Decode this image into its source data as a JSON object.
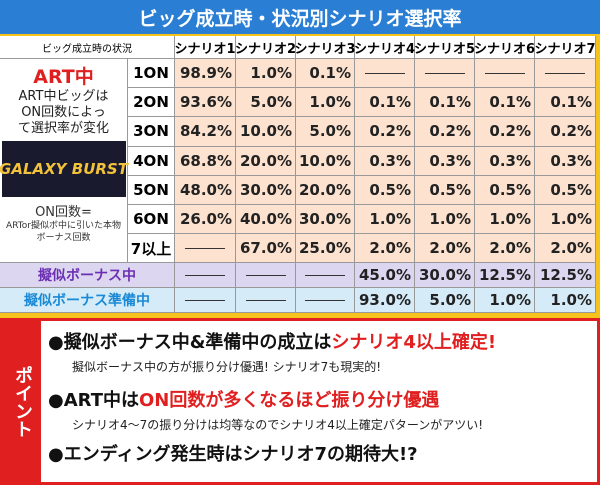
{
  "header": {
    "title": "ビッグ成立時・状況別シナリオ選択率"
  },
  "table": {
    "corner": "ビッグ成立時の状況",
    "columns": [
      "シナリオ1",
      "シナリオ2",
      "シナリオ3",
      "シナリオ4",
      "シナリオ5",
      "シナリオ6",
      "シナリオ7"
    ],
    "art_group": {
      "label": "ART中",
      "note": "ART中ビッグはON回数によって選択率が変化",
      "logo": "GALAXY BURST",
      "on_label": "ON回数=",
      "on_note": "ARTor擬似ボ中に引いた本物ボーナス回数"
    },
    "art_rows": [
      {
        "label": "1ON",
        "cells": [
          "98.9%",
          "1.0%",
          "0.1%",
          null,
          null,
          null,
          null
        ]
      },
      {
        "label": "2ON",
        "cells": [
          "93.6%",
          "5.0%",
          "1.0%",
          "0.1%",
          "0.1%",
          "0.1%",
          "0.1%"
        ]
      },
      {
        "label": "3ON",
        "cells": [
          "84.2%",
          "10.0%",
          "5.0%",
          "0.2%",
          "0.2%",
          "0.2%",
          "0.2%"
        ]
      },
      {
        "label": "4ON",
        "cells": [
          "68.8%",
          "20.0%",
          "10.0%",
          "0.3%",
          "0.3%",
          "0.3%",
          "0.3%"
        ]
      },
      {
        "label": "5ON",
        "cells": [
          "48.0%",
          "30.0%",
          "20.0%",
          "0.5%",
          "0.5%",
          "0.5%",
          "0.5%"
        ]
      },
      {
        "label": "6ON",
        "cells": [
          "26.0%",
          "40.0%",
          "30.0%",
          "1.0%",
          "1.0%",
          "1.0%",
          "1.0%"
        ]
      },
      {
        "label": "7以上",
        "cells": [
          null,
          "67.0%",
          "25.0%",
          "2.0%",
          "2.0%",
          "2.0%",
          "2.0%"
        ]
      }
    ],
    "other_rows": [
      {
        "label": "擬似ボーナス中",
        "cells": [
          null,
          null,
          null,
          "45.0%",
          "30.0%",
          "12.5%",
          "12.5%"
        ]
      },
      {
        "label": "擬似ボーナス準備中",
        "cells": [
          null,
          null,
          null,
          "93.0%",
          "5.0%",
          "1.0%",
          "1.0%"
        ]
      }
    ]
  },
  "points": {
    "label": "ポイント",
    "items": [
      {
        "head": "●擬似ボーナス中&準備中の成立は",
        "emph": "シナリオ4以上確定!",
        "sub": "擬似ボーナス中の方が振り分け優遇! シナリオ7も現実的!"
      },
      {
        "head": "●ART中は",
        "emph": "ON回数が多くなるほど振り分け優遇",
        "sub": "シナリオ4〜7の振り分けは均等なのでシナリオ4以上確定パターンがアツい!"
      },
      {
        "head": "●エンディング発生時はシナリオ7の期待大!?"
      }
    ]
  }
}
